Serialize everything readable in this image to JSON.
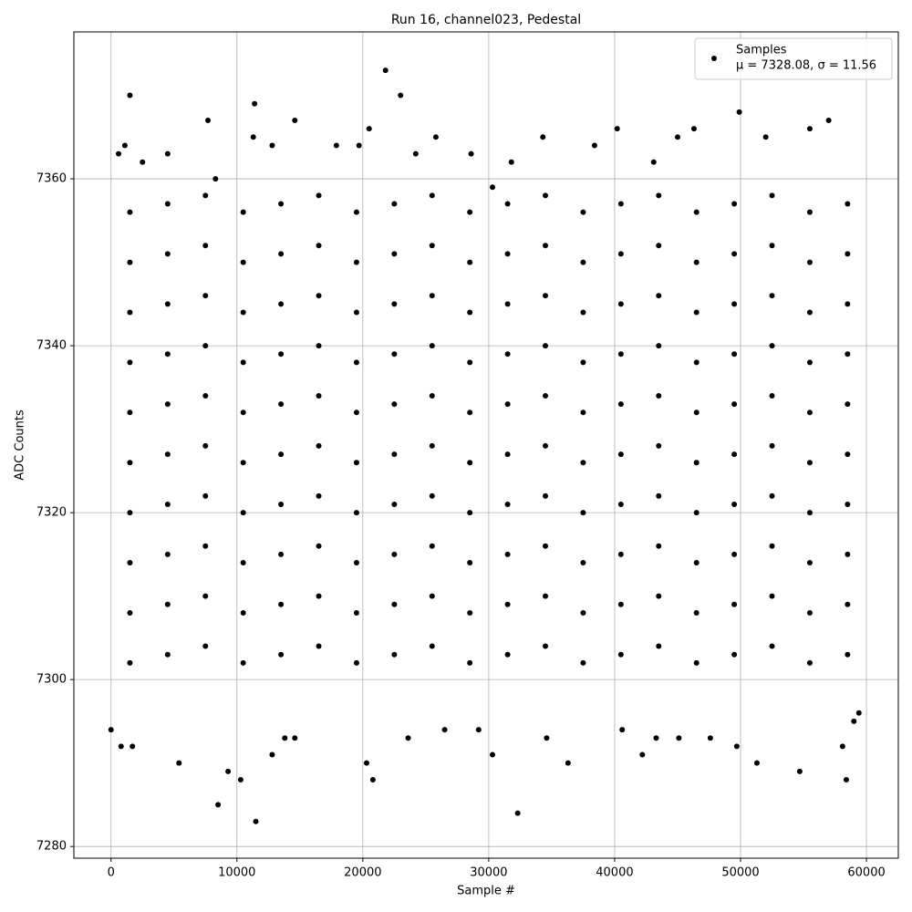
{
  "chart_data": {
    "type": "scatter",
    "title": "Run 16, channel023, Pedestal",
    "x_label": "Sample #",
    "y_label": "ADC Counts",
    "xlim": [
      -2950,
      62530
    ],
    "ylim": [
      7278.6,
      7377.6
    ],
    "xticks": [
      0,
      10000,
      20000,
      30000,
      40000,
      50000,
      60000
    ],
    "yticks": [
      7280,
      7300,
      7320,
      7340,
      7360
    ],
    "grid": true,
    "legend": "upper right",
    "annotation": "μ = 7328.08, σ = 11.56",
    "series": [
      {
        "name": "Samples",
        "color": "#000000",
        "x": [
          1500,
          21800,
          23000,
          11400,
          49900,
          7700,
          14600,
          57000,
          20500,
          40200,
          46300,
          55500,
          11300,
          25800,
          34300,
          45000,
          52000,
          1100,
          17900,
          19700,
          38400,
          2500,
          31800,
          12800,
          600,
          4500,
          28600,
          24200,
          43100,
          8300,
          30300,
          0,
          8500,
          11500,
          10300,
          9300,
          20800,
          20300,
          5400,
          32300,
          30300,
          36300,
          42200,
          51300,
          54700,
          58400,
          49700,
          58100,
          1700,
          800,
          12800,
          23600,
          14600,
          13800,
          34600,
          40600,
          43300,
          45100,
          47600,
          26500,
          29200,
          59000,
          59400,
          1500,
          1500,
          1500,
          1500,
          1500,
          1500,
          1500,
          1500,
          1500,
          1500,
          4500,
          4500,
          4500,
          4500,
          4500,
          4500,
          4500,
          4500,
          4500,
          4500,
          7500,
          7500,
          7500,
          7500,
          7500,
          7500,
          7500,
          7500,
          7500,
          7500,
          10500,
          10500,
          10500,
          10500,
          10500,
          10500,
          10500,
          10500,
          10500,
          10500,
          13500,
          13500,
          13500,
          13500,
          13500,
          13500,
          13500,
          13500,
          13500,
          13500,
          16500,
          16500,
          16500,
          16500,
          16500,
          16500,
          16500,
          16500,
          16500,
          16500,
          19500,
          19500,
          19500,
          19500,
          19500,
          19500,
          19500,
          19500,
          19500,
          19500,
          22500,
          22500,
          22500,
          22500,
          22500,
          22500,
          22500,
          22500,
          22500,
          22500,
          25500,
          25500,
          25500,
          25500,
          25500,
          25500,
          25500,
          25500,
          25500,
          25500,
          28500,
          28500,
          28500,
          28500,
          28500,
          28500,
          28500,
          28500,
          28500,
          28500,
          31500,
          31500,
          31500,
          31500,
          31500,
          31500,
          31500,
          31500,
          31500,
          31500,
          34500,
          34500,
          34500,
          34500,
          34500,
          34500,
          34500,
          34500,
          34500,
          34500,
          37500,
          37500,
          37500,
          37500,
          37500,
          37500,
          37500,
          37500,
          37500,
          37500,
          40500,
          40500,
          40500,
          40500,
          40500,
          40500,
          40500,
          40500,
          40500,
          40500,
          43500,
          43500,
          43500,
          43500,
          43500,
          43500,
          43500,
          43500,
          43500,
          43500,
          46500,
          46500,
          46500,
          46500,
          46500,
          46500,
          46500,
          46500,
          46500,
          46500,
          49500,
          49500,
          49500,
          49500,
          49500,
          49500,
          49500,
          49500,
          49500,
          49500,
          52500,
          52500,
          52500,
          52500,
          52500,
          52500,
          52500,
          52500,
          52500,
          52500,
          55500,
          55500,
          55500,
          55500,
          55500,
          55500,
          55500,
          55500,
          55500,
          55500,
          58500,
          58500,
          58500,
          58500,
          58500,
          58500,
          58500,
          58500,
          58500,
          58500
        ],
        "y": [
          7370,
          7373,
          7370,
          7369,
          7368,
          7367,
          7367,
          7367,
          7366,
          7366,
          7366,
          7366,
          7365,
          7365,
          7365,
          7365,
          7365,
          7364,
          7364,
          7364,
          7364,
          7362,
          7362,
          7364,
          7363,
          7363,
          7363,
          7363,
          7362,
          7360,
          7359,
          7294,
          7285,
          7283,
          7288,
          7289,
          7288,
          7290,
          7290,
          7284,
          7291,
          7290,
          7291,
          7290,
          7289,
          7288,
          7292,
          7292,
          7292,
          7292,
          7291,
          7293,
          7293,
          7293,
          7293,
          7294,
          7293,
          7293,
          7293,
          7294,
          7294,
          7295,
          7296,
          7302,
          7308,
          7314,
          7320,
          7326,
          7332,
          7338,
          7344,
          7350,
          7356,
          7303,
          7309,
          7315,
          7321,
          7327,
          7333,
          7339,
          7345,
          7351,
          7357,
          7304,
          7310,
          7316,
          7322,
          7328,
          7334,
          7340,
          7346,
          7352,
          7358,
          7302,
          7308,
          7314,
          7320,
          7326,
          7332,
          7338,
          7344,
          7350,
          7356,
          7303,
          7309,
          7315,
          7321,
          7327,
          7333,
          7339,
          7345,
          7351,
          7357,
          7304,
          7310,
          7316,
          7322,
          7328,
          7334,
          7340,
          7346,
          7352,
          7358,
          7302,
          7308,
          7314,
          7320,
          7326,
          7332,
          7338,
          7344,
          7350,
          7356,
          7303,
          7309,
          7315,
          7321,
          7327,
          7333,
          7339,
          7345,
          7351,
          7357,
          7304,
          7310,
          7316,
          7322,
          7328,
          7334,
          7340,
          7346,
          7352,
          7358,
          7302,
          7308,
          7314,
          7320,
          7326,
          7332,
          7338,
          7344,
          7350,
          7356,
          7303,
          7309,
          7315,
          7321,
          7327,
          7333,
          7339,
          7345,
          7351,
          7357,
          7304,
          7310,
          7316,
          7322,
          7328,
          7334,
          7340,
          7346,
          7352,
          7358,
          7302,
          7308,
          7314,
          7320,
          7326,
          7332,
          7338,
          7344,
          7350,
          7356,
          7303,
          7309,
          7315,
          7321,
          7327,
          7333,
          7339,
          7345,
          7351,
          7357,
          7304,
          7310,
          7316,
          7322,
          7328,
          7334,
          7340,
          7346,
          7352,
          7358,
          7302,
          7308,
          7314,
          7320,
          7326,
          7332,
          7338,
          7344,
          7350,
          7356,
          7303,
          7309,
          7315,
          7321,
          7327,
          7333,
          7339,
          7345,
          7351,
          7357,
          7304,
          7310,
          7316,
          7322,
          7328,
          7334,
          7340,
          7346,
          7352,
          7358,
          7302,
          7308,
          7314,
          7320,
          7326,
          7332,
          7338,
          7344,
          7350,
          7356,
          7303,
          7309,
          7315,
          7321,
          7327,
          7333,
          7339,
          7345,
          7351,
          7357
        ]
      }
    ]
  }
}
